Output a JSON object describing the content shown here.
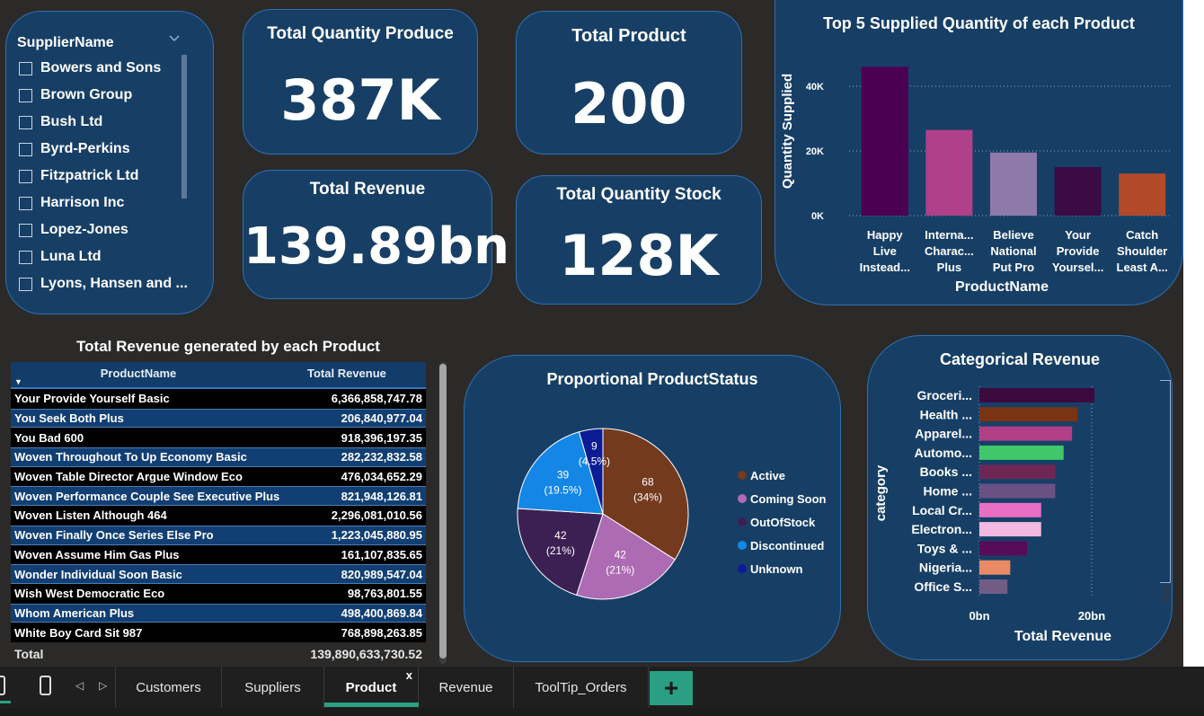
{
  "slicer": {
    "title": "SupplierName",
    "items": [
      "Bowers and Sons",
      "Brown Group",
      "Bush Ltd",
      "Byrd-Perkins",
      "Fitzpatrick Ltd",
      "Harrison Inc",
      "Lopez-Jones",
      "Luna Ltd",
      "Lyons, Hansen and ..."
    ]
  },
  "kpis": {
    "total_quantity_produce": {
      "title": "Total Quantity Produce",
      "value": "387K"
    },
    "total_product": {
      "title": "Total Product",
      "value": "200"
    },
    "total_revenue": {
      "title": "Total Revenue",
      "value": "139.89bn"
    },
    "total_quantity_stock": {
      "title": "Total Quantity Stock",
      "value": "128K"
    }
  },
  "revenue_table": {
    "title": "Total Revenue generated by each Product",
    "columns": [
      "ProductName",
      "Total Revenue"
    ],
    "rows": [
      [
        "Your Provide Yourself Basic",
        "6,366,858,747.78"
      ],
      [
        "You Seek Both Plus",
        "206,840,977.04"
      ],
      [
        "You Bad 600",
        "918,396,197.35"
      ],
      [
        "Woven Throughout To Up Economy Basic",
        "282,232,832.58"
      ],
      [
        "Woven Table Director Argue Window Eco",
        "476,034,652.29"
      ],
      [
        "Woven Performance Couple See Executive Plus",
        "821,948,126.81"
      ],
      [
        "Woven Listen Although 464",
        "2,296,081,010.56"
      ],
      [
        "Woven Finally Once Series Else Pro",
        "1,223,045,880.95"
      ],
      [
        "Woven Assume Him Gas Plus",
        "161,107,835.65"
      ],
      [
        "Wonder Individual Soon Basic",
        "820,989,547.04"
      ],
      [
        "Wish West Democratic Eco",
        "98,763,801.55"
      ],
      [
        "Whom American Plus",
        "498,400,869.84"
      ],
      [
        "White Boy Card Sit 987",
        "768,898,263.85"
      ]
    ],
    "total_label": "Total",
    "total_value": "139,890,633,730.52"
  },
  "tabs": {
    "customers": "Customers",
    "suppliers": "Suppliers",
    "product": "Product",
    "revenue": "Revenue",
    "tooltip_orders": "ToolTip_Orders",
    "close_glyph": "x",
    "add_glyph": "+",
    "prev_glyph": "◁",
    "next_glyph": "▷"
  },
  "colors": {
    "card_bg": "#173f66",
    "card_border": "#2f6fb0",
    "accent_tab": "#2a9f84"
  },
  "chart_data": [
    {
      "type": "bar",
      "title": "Top 5 Supplied Quantity of each Product",
      "xlabel": "ProductName",
      "ylabel": "Quantity Supplied",
      "ylim": [
        0,
        50000
      ],
      "yticks": [
        "0K",
        "20K",
        "40K"
      ],
      "categories": [
        [
          "Happy",
          "Live",
          "Instead..."
        ],
        [
          "Interna...",
          "Charac...",
          "Plus"
        ],
        [
          "Believe",
          "National",
          "Put Pro"
        ],
        [
          "Your",
          "Provide",
          "Yoursel..."
        ],
        [
          "Catch",
          "Shoulder",
          "Least A..."
        ]
      ],
      "values": [
        46000,
        26500,
        19500,
        15000,
        13000
      ],
      "colors": [
        "#4b0052",
        "#b0408a",
        "#8e7aaa",
        "#3a0b45",
        "#b24a2a"
      ],
      "grid": true
    },
    {
      "type": "pie",
      "title": "Proportional ProductStatus",
      "legend_position": "right",
      "slices": [
        {
          "name": "Active",
          "value": 68,
          "label": [
            "68",
            "(34%)"
          ],
          "color": "#733a1e"
        },
        {
          "name": "Coming Soon",
          "value": 42,
          "label": [
            "42",
            "(21%)"
          ],
          "color": "#ad6bb4"
        },
        {
          "name": "OutOfStock",
          "value": 42,
          "label": [
            "42",
            "(21%)"
          ],
          "color": "#3c2053"
        },
        {
          "name": "Discontinued",
          "value": 39,
          "label": [
            "39",
            "(19.5%)"
          ],
          "color": "#1487e6"
        },
        {
          "name": "Unknown",
          "value": 9,
          "label": [
            "9",
            "(4.5%)"
          ],
          "color": "#0c1c95"
        }
      ]
    },
    {
      "type": "bar",
      "orientation": "horizontal",
      "title": "Categorical Revenue",
      "xlabel": "Total Revenue",
      "ylabel": "category",
      "xticks": [
        "0bn",
        "20bn"
      ],
      "xlim": [
        0,
        25
      ],
      "categories": [
        "Groceri...",
        "Health ...",
        "Apparel...",
        "Automo...",
        "Books ...",
        "Home ...",
        "Local Cr...",
        "Electron...",
        "Toys & ...",
        "Nigeria...",
        "Office S..."
      ],
      "values": [
        20.5,
        17.5,
        16.5,
        15,
        13.5,
        13.5,
        11,
        11,
        8.5,
        5.5,
        5
      ],
      "colors": [
        "#3d0a3f",
        "#7a3414",
        "#b13f86",
        "#3fc76a",
        "#6e2755",
        "#6a5184",
        "#e86fc3",
        "#f3b9e0",
        "#560c59",
        "#e98a65",
        "#705c85"
      ],
      "grid": true
    }
  ]
}
